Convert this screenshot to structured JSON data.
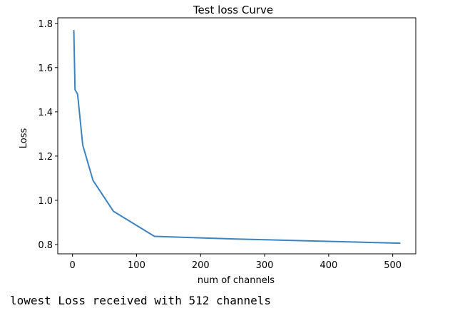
{
  "chart_data": {
    "type": "line",
    "title": "Test loss Curve",
    "xlabel": "num of channels",
    "ylabel": "Loss",
    "xlim": [
      -23,
      536
    ],
    "ylim": [
      0.758,
      1.825
    ],
    "xticks": [
      0,
      100,
      200,
      300,
      400,
      500
    ],
    "yticks": [
      0.8,
      1.0,
      1.2,
      1.4,
      1.6,
      1.8
    ],
    "ytick_labels": [
      "0.8",
      "1.0",
      "1.2",
      "1.4",
      "1.6",
      "1.8"
    ],
    "grid": false,
    "line_color": "#3b84c1",
    "series": [
      {
        "x": [
          2,
          4,
          8,
          16,
          32,
          64,
          128,
          256,
          512
        ],
        "y": [
          1.77,
          1.5,
          1.48,
          1.25,
          1.09,
          0.95,
          0.837,
          0.825,
          0.806
        ]
      }
    ]
  },
  "output": {
    "text": "lowest Loss received with 512 channels"
  }
}
